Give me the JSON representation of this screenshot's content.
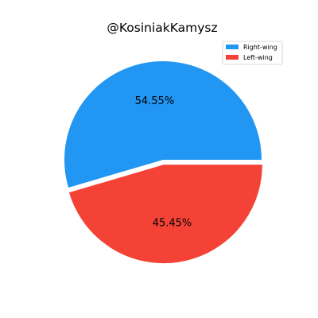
{
  "chart_data": {
    "type": "pie",
    "title": "@KosiniakKamysz",
    "slices": [
      {
        "label": "Right-wing",
        "value": 54.55,
        "display": "54.55%",
        "color": "#2196F3"
      },
      {
        "label": "Left-wing",
        "value": 45.45,
        "display": "45.45%",
        "color": "#F44336"
      }
    ],
    "explode": [
      0,
      0.05
    ],
    "start_angle_deg": 0,
    "direction": "counterclockwise",
    "legend": {
      "position": "top-right"
    }
  }
}
